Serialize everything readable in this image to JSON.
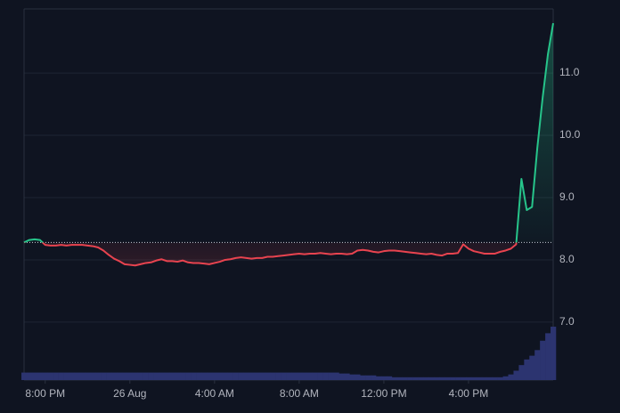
{
  "chart_data": {
    "type": "baseline-area",
    "baseline": 8.28,
    "ylim": [
      6.07,
      12.03
    ],
    "yticks": [
      {
        "value": 7,
        "label": "7.0"
      },
      {
        "value": 8,
        "label": "8.0"
      },
      {
        "value": 9,
        "label": "9.0"
      },
      {
        "value": 10,
        "label": "10.0"
      },
      {
        "value": 11,
        "label": "11.0"
      }
    ],
    "xticks": [
      {
        "value": 4,
        "label": "8:00 PM"
      },
      {
        "value": 20,
        "label": "26 Aug"
      },
      {
        "value": 36,
        "label": "4:00 AM"
      },
      {
        "value": 52,
        "label": "8:00 AM"
      },
      {
        "value": 68,
        "label": "12:00 PM"
      },
      {
        "value": 84,
        "label": "4:00 PM"
      }
    ],
    "grid": true,
    "up_color": "#26c48a",
    "down_color": "#e8434f",
    "volume_color": "#2c3470",
    "values": [
      8.28,
      8.32,
      8.33,
      8.32,
      8.24,
      8.23,
      8.23,
      8.24,
      8.23,
      8.24,
      8.24,
      8.24,
      8.23,
      8.22,
      8.2,
      8.15,
      8.08,
      8.02,
      7.98,
      7.93,
      7.92,
      7.91,
      7.93,
      7.95,
      7.96,
      7.99,
      8.01,
      7.98,
      7.98,
      7.97,
      7.99,
      7.96,
      7.95,
      7.95,
      7.94,
      7.93,
      7.95,
      7.97,
      8.0,
      8.01,
      8.03,
      8.04,
      8.03,
      8.02,
      8.03,
      8.03,
      8.05,
      8.05,
      8.06,
      8.07,
      8.08,
      8.09,
      8.1,
      8.09,
      8.1,
      8.1,
      8.11,
      8.1,
      8.09,
      8.1,
      8.1,
      8.09,
      8.1,
      8.15,
      8.16,
      8.15,
      8.13,
      8.12,
      8.14,
      8.15,
      8.15,
      8.14,
      8.13,
      8.12,
      8.11,
      8.1,
      8.09,
      8.1,
      8.08,
      8.07,
      8.1,
      8.1,
      8.11,
      8.25,
      8.18,
      8.14,
      8.12,
      8.1,
      8.1,
      8.1,
      8.13,
      8.15,
      8.18,
      8.25,
      9.3,
      8.8,
      8.85,
      9.8,
      10.6,
      11.3,
      11.8
    ],
    "volume": [
      8,
      8,
      8,
      8,
      8,
      8,
      8,
      8,
      8,
      8,
      8,
      8,
      8,
      8,
      8,
      8,
      8,
      8,
      8,
      8,
      8,
      8,
      8,
      8,
      8,
      8,
      8,
      8,
      8,
      8,
      8,
      8,
      8,
      8,
      8,
      8,
      8,
      8,
      8,
      8,
      8,
      8,
      8,
      8,
      8,
      8,
      8,
      8,
      8,
      8,
      8,
      8,
      8,
      8,
      8,
      8,
      8,
      8,
      8,
      8,
      7,
      7,
      6,
      6,
      5,
      5,
      5,
      4,
      4,
      4,
      3,
      3,
      3,
      3,
      3,
      3,
      3,
      3,
      3,
      3,
      3,
      3,
      3,
      3,
      3,
      3,
      3,
      3,
      3,
      3,
      3,
      4,
      6,
      10,
      16,
      22,
      26,
      32,
      42,
      50,
      57
    ]
  }
}
